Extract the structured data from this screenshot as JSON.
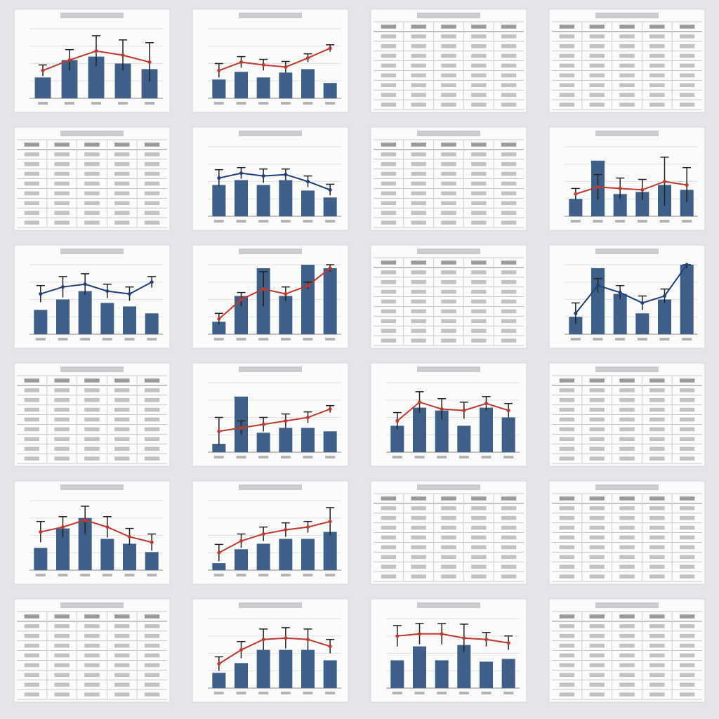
{
  "ylim": [
    0,
    100
  ],
  "bar_color": "#3e5f87",
  "tiles": [
    {
      "kind": "chart",
      "line_color": "#c0392b",
      "bars": [
        30,
        55,
        60,
        50,
        42
      ],
      "line": [
        40,
        55,
        68,
        62,
        52
      ],
      "err": [
        8,
        15,
        22,
        22,
        28
      ]
    },
    {
      "kind": "chart",
      "line_color": "#c0392b",
      "bars": [
        27,
        38,
        30,
        37,
        42,
        22
      ],
      "line": [
        40,
        52,
        48,
        45,
        58,
        72
      ],
      "err": [
        10,
        8,
        8,
        8,
        6,
        5
      ]
    },
    {
      "kind": "table",
      "rows": 9,
      "cols": 5
    },
    {
      "kind": "table",
      "rows": 9,
      "cols": 5
    },
    {
      "kind": "table",
      "rows": 9,
      "cols": 5
    },
    {
      "kind": "chart",
      "line_color": "#1f3f7a",
      "bars": [
        45,
        52,
        45,
        52,
        37,
        27
      ],
      "line": [
        55,
        62,
        58,
        60,
        50,
        38
      ],
      "err": [
        12,
        8,
        10,
        8,
        8,
        8
      ]
    },
    {
      "kind": "table",
      "rows": 9,
      "cols": 5
    },
    {
      "kind": "chart",
      "line_color": "#c0392b",
      "bars": [
        25,
        80,
        32,
        35,
        45,
        38
      ],
      "line": [
        32,
        42,
        40,
        38,
        50,
        45
      ],
      "err": [
        8,
        18,
        15,
        15,
        35,
        25
      ]
    },
    {
      "kind": "chart",
      "line_color": "#1f3f7a",
      "bars": [
        35,
        50,
        62,
        45,
        40,
        30
      ],
      "line": [
        58,
        68,
        72,
        62,
        58,
        75
      ],
      "err": [
        12,
        15,
        15,
        10,
        10,
        8
      ]
    },
    {
      "kind": "chart",
      "line_color": "#c0392b",
      "bars": [
        18,
        55,
        95,
        55,
        100,
        95
      ],
      "line": [
        22,
        50,
        65,
        58,
        70,
        95
      ],
      "err": [
        8,
        10,
        25,
        10,
        5,
        5
      ]
    },
    {
      "kind": "table",
      "rows": 9,
      "cols": 5
    },
    {
      "kind": "chart",
      "line_color": "#1f3f7a",
      "bars": [
        25,
        95,
        58,
        30,
        50,
        100
      ],
      "line": [
        30,
        70,
        60,
        45,
        55,
        100
      ],
      "err": [
        15,
        10,
        10,
        10,
        10,
        5
      ]
    },
    {
      "kind": "table",
      "rows": 9,
      "cols": 5
    },
    {
      "kind": "chart",
      "line_color": "#c0392b",
      "bars": [
        12,
        80,
        28,
        35,
        35,
        30
      ],
      "line": [
        30,
        35,
        40,
        45,
        50,
        62
      ],
      "err": [
        20,
        10,
        10,
        10,
        8,
        5
      ]
    },
    {
      "kind": "chart",
      "line_color": "#c0392b",
      "bars": [
        38,
        64,
        60,
        38,
        64,
        50
      ],
      "line": [
        45,
        72,
        62,
        60,
        70,
        60
      ],
      "err": [
        12,
        15,
        15,
        12,
        10,
        10
      ]
    },
    {
      "kind": "table",
      "rows": 9,
      "cols": 5
    },
    {
      "kind": "chart",
      "line_color": "#c0392b",
      "bars": [
        32,
        60,
        75,
        45,
        38,
        26
      ],
      "line": [
        55,
        62,
        72,
        62,
        48,
        40
      ],
      "err": [
        15,
        15,
        20,
        15,
        12,
        12
      ]
    },
    {
      "kind": "chart",
      "line_color": "#c0392b",
      "bars": [
        10,
        30,
        38,
        45,
        45,
        55
      ],
      "line": [
        25,
        42,
        52,
        58,
        62,
        70
      ],
      "err": [
        12,
        10,
        10,
        10,
        8,
        20
      ]
    },
    {
      "kind": "table",
      "rows": 9,
      "cols": 5
    },
    {
      "kind": "table",
      "rows": 9,
      "cols": 5
    },
    {
      "kind": "table",
      "rows": 9,
      "cols": 5
    },
    {
      "kind": "chart",
      "line_color": "#c0392b",
      "bars": [
        22,
        36,
        55,
        55,
        55,
        40
      ],
      "line": [
        35,
        55,
        70,
        72,
        70,
        60
      ],
      "err": [
        10,
        12,
        15,
        15,
        15,
        10
      ]
    },
    {
      "kind": "chart",
      "line_color": "#c0392b",
      "bars": [
        40,
        60,
        40,
        62,
        38,
        42
      ],
      "line": [
        75,
        78,
        78,
        72,
        70,
        65
      ],
      "err": [
        15,
        15,
        15,
        20,
        10,
        10
      ]
    },
    {
      "kind": "table",
      "rows": 9,
      "cols": 5
    }
  ]
}
